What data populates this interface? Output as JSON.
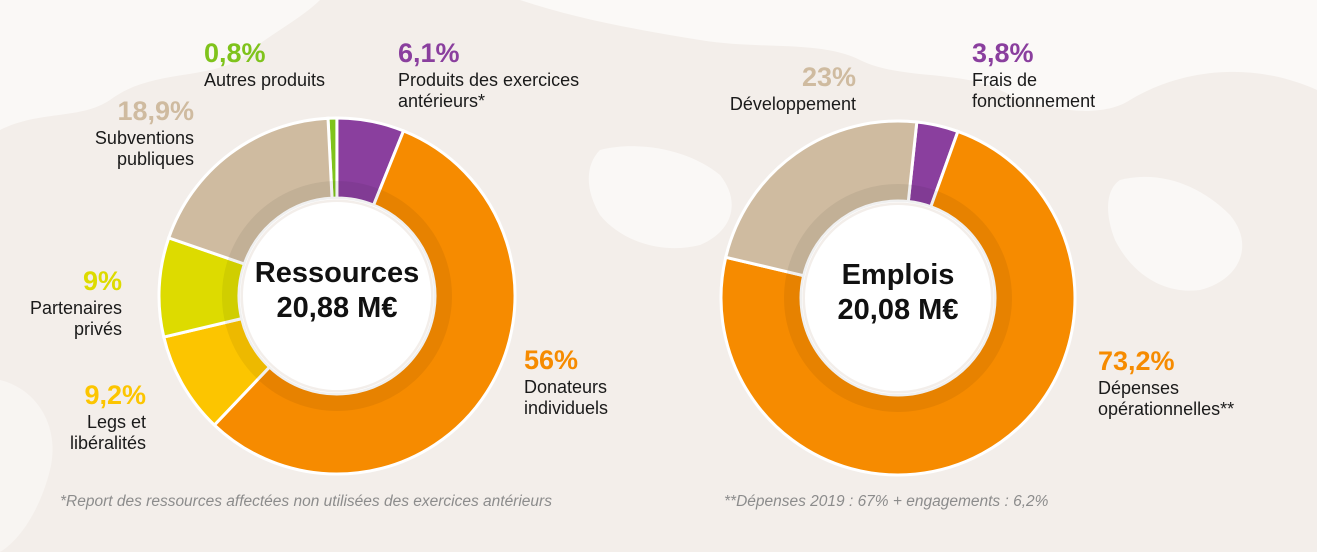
{
  "colors": {
    "orange": "#f68b00",
    "orange_inner": "#e07900",
    "purple": "#8a3f9e",
    "tan": "#cfbba0",
    "lime": "#dddb00",
    "yellow": "#fcc500",
    "green": "#7fc31c",
    "center_fill": "#ffffff",
    "separator": "#ffffff"
  },
  "chart_data": [
    {
      "type": "pie",
      "title": "Ressources",
      "total": "20,88 M€",
      "slices": [
        {
          "pct_label": "0,8%",
          "value": 0.8,
          "label": [
            "Autres produits"
          ],
          "color": "green"
        },
        {
          "pct_label": "6,1%",
          "value": 6.1,
          "label": [
            "Produits des exercices",
            "antérieurs*"
          ],
          "color": "purple"
        },
        {
          "pct_label": "56%",
          "value": 56,
          "label": [
            "Donateurs",
            "individuels"
          ],
          "color": "orange"
        },
        {
          "pct_label": "9,2%",
          "value": 9.2,
          "label": [
            "Legs et",
            "libéralités"
          ],
          "color": "yellow"
        },
        {
          "pct_label": "9%",
          "value": 9,
          "label": [
            "Partenaires",
            "privés"
          ],
          "color": "lime"
        },
        {
          "pct_label": "18,9%",
          "value": 18.9,
          "label": [
            "Subventions",
            "publiques"
          ],
          "color": "tan"
        }
      ],
      "footnote": "*Report des ressources affectées non utilisées des exercices antérieurs"
    },
    {
      "type": "pie",
      "title": "Emplois",
      "total": "20,08 M€",
      "slices": [
        {
          "pct_label": "3,8%",
          "value": 3.8,
          "label": [
            "Frais de",
            "fonctionnement"
          ],
          "color": "purple"
        },
        {
          "pct_label": "73,2%",
          "value": 73.2,
          "label": [
            "Dépenses",
            "opérationnelles**"
          ],
          "color": "orange"
        },
        {
          "pct_label": "23%",
          "value": 23,
          "label": [
            "Développement"
          ],
          "color": "tan"
        }
      ],
      "footnote": "**Dépenses 2019 : 67% + engagements : 6,2%"
    }
  ]
}
